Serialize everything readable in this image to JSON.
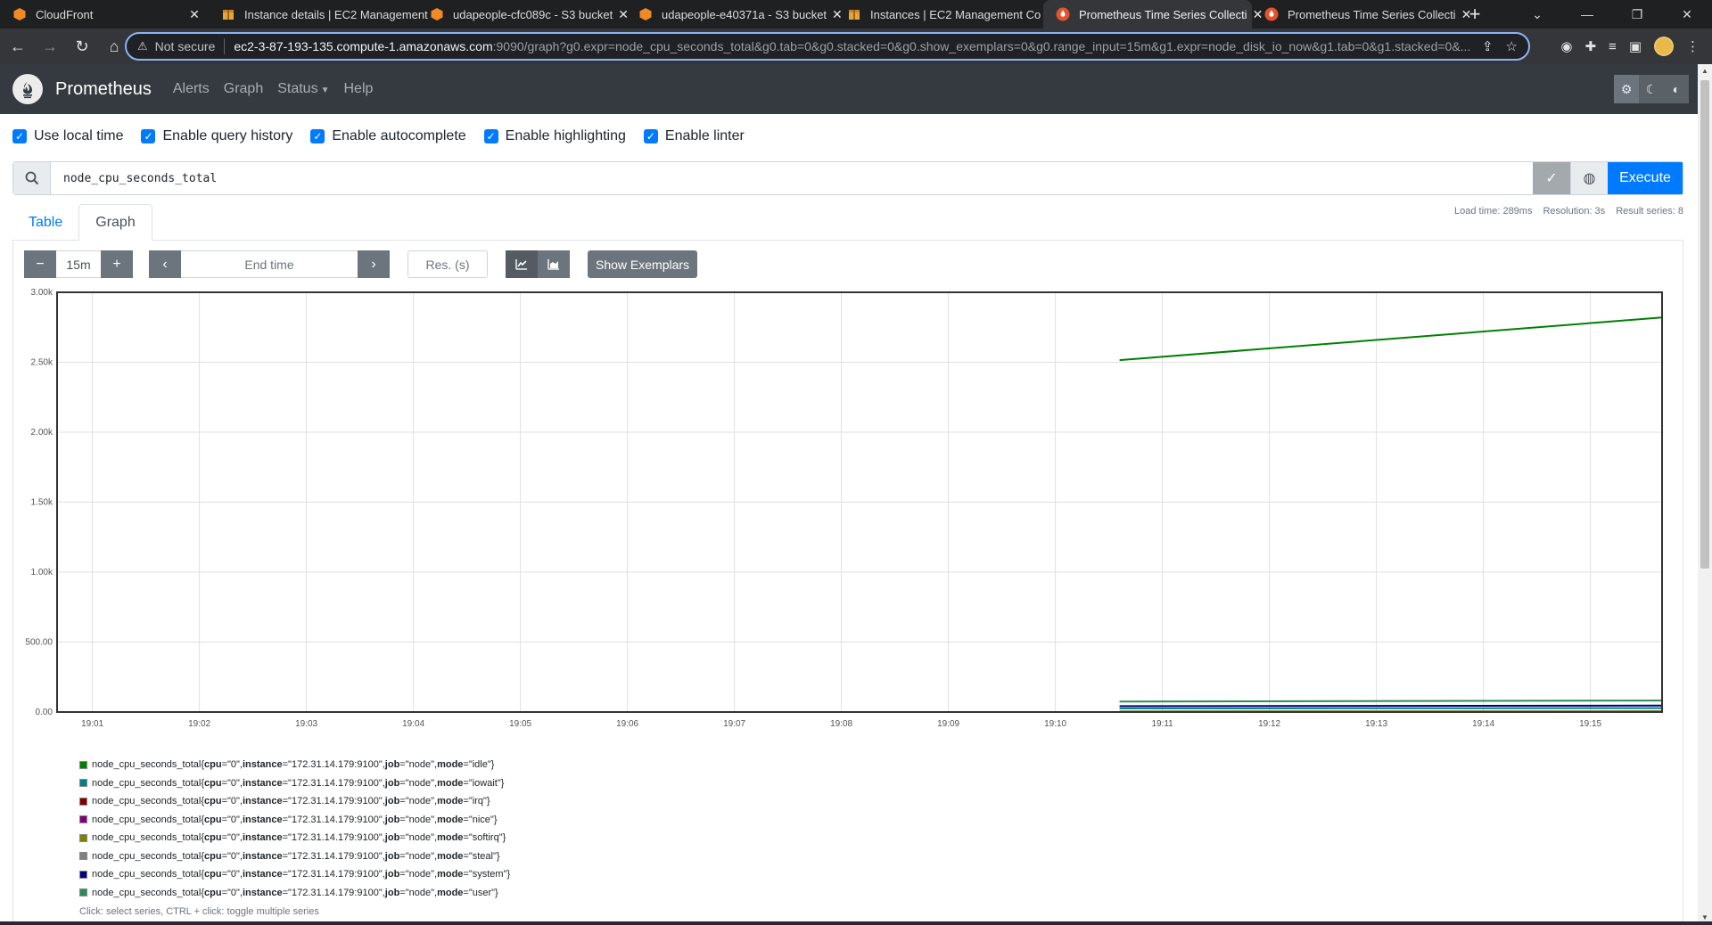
{
  "browser": {
    "tabs": [
      {
        "title": "CloudFront",
        "favicon": "aws-orange-icon",
        "active": false
      },
      {
        "title": "Instance details | EC2 Management",
        "favicon": "ec2-box-icon",
        "active": false
      },
      {
        "title": "udapeople-cfc089c - S3 bucket",
        "favicon": "aws-orange-icon",
        "active": false
      },
      {
        "title": "udapeople-e40371a - S3 bucket",
        "favicon": "aws-orange-icon",
        "active": false
      },
      {
        "title": "Instances | EC2 Management Co",
        "favicon": "ec2-box-icon",
        "active": false
      },
      {
        "title": "Prometheus Time Series Collecti",
        "favicon": "prometheus-icon",
        "active": true
      },
      {
        "title": "Prometheus Time Series Collecti",
        "favicon": "prometheus-icon",
        "active": false
      }
    ],
    "address": {
      "security_label": "Not secure",
      "host": "ec2-3-87-193-135.compute-1.amazonaws.com",
      "path": ":9090/graph?g0.expr=node_cpu_seconds_total&g0.tab=0&g0.stacked=0&g0.show_exemplars=0&g0.range_input=15m&g1.expr=node_disk_io_now&g1.tab=0&g1.stacked=0&..."
    }
  },
  "nav": {
    "brand": "Prometheus",
    "links": [
      "Alerts",
      "Graph",
      "Status",
      "Help"
    ]
  },
  "options": [
    {
      "label": "Use local time",
      "checked": true
    },
    {
      "label": "Enable query history",
      "checked": true
    },
    {
      "label": "Enable autocomplete",
      "checked": true
    },
    {
      "label": "Enable highlighting",
      "checked": true
    },
    {
      "label": "Enable linter",
      "checked": true
    }
  ],
  "query": {
    "expression": "node_cpu_seconds_total",
    "execute_label": "Execute"
  },
  "stats": {
    "load_time": "Load time: 289ms",
    "resolution": "Resolution: 3s",
    "result_series": "Result series: 8"
  },
  "panel_tabs": {
    "table": "Table",
    "graph": "Graph",
    "active": "graph"
  },
  "controls": {
    "range": "15m",
    "end_time_placeholder": "End time",
    "resolution_placeholder": "Res. (s)",
    "exemplars_label": "Show Exemplars"
  },
  "legend": {
    "metric": "node_cpu_seconds_total",
    "items": [
      {
        "cpu": "0",
        "instance": "172.31.14.179:9100",
        "job": "node",
        "mode": "idle",
        "color": "#008000"
      },
      {
        "cpu": "0",
        "instance": "172.31.14.179:9100",
        "job": "node",
        "mode": "iowait",
        "color": "#008080"
      },
      {
        "cpu": "0",
        "instance": "172.31.14.179:9100",
        "job": "node",
        "mode": "irq",
        "color": "#800000"
      },
      {
        "cpu": "0",
        "instance": "172.31.14.179:9100",
        "job": "node",
        "mode": "nice",
        "color": "#800080"
      },
      {
        "cpu": "0",
        "instance": "172.31.14.179:9100",
        "job": "node",
        "mode": "softirq",
        "color": "#808000"
      },
      {
        "cpu": "0",
        "instance": "172.31.14.179:9100",
        "job": "node",
        "mode": "steal",
        "color": "#808080"
      },
      {
        "cpu": "0",
        "instance": "172.31.14.179:9100",
        "job": "node",
        "mode": "system",
        "color": "#000080"
      },
      {
        "cpu": "0",
        "instance": "172.31.14.179:9100",
        "job": "node",
        "mode": "user",
        "color": "#2e8b57"
      }
    ],
    "hint": "Click: select series, CTRL + click: toggle multiple series"
  },
  "chart_data": {
    "type": "line",
    "y_ticks": [
      "0.00",
      "500.00",
      "1.00k",
      "1.50k",
      "2.00k",
      "2.50k",
      "3.00k"
    ],
    "ylim": [
      0,
      3000
    ],
    "x_ticks": [
      "19:01",
      "19:02",
      "19:03",
      "19:04",
      "19:05",
      "19:06",
      "19:07",
      "19:08",
      "19:09",
      "19:10",
      "19:11",
      "19:12",
      "19:13",
      "19:14",
      "19:15"
    ],
    "x_range_minutes": [
      0.67,
      15.67
    ],
    "grid": true,
    "series": [
      {
        "name": "idle",
        "color": "#008000",
        "start_min": 10.6,
        "end_min": 15.67,
        "y_start": 2515,
        "y_end": 2820
      },
      {
        "name": "user",
        "color": "#2e8b57",
        "start_min": 10.6,
        "end_min": 15.67,
        "y_start": 75,
        "y_end": 82
      },
      {
        "name": "system",
        "color": "#000080",
        "start_min": 10.6,
        "end_min": 15.67,
        "y_start": 42,
        "y_end": 46
      },
      {
        "name": "iowait",
        "color": "#008080",
        "start_min": 10.6,
        "end_min": 15.67,
        "y_start": 26,
        "y_end": 28
      },
      {
        "name": "softirq",
        "color": "#808000",
        "start_min": 10.6,
        "end_min": 15.67,
        "y_start": 5,
        "y_end": 6
      },
      {
        "name": "steal",
        "color": "#808080",
        "start_min": 10.6,
        "end_min": 15.67,
        "y_start": 3,
        "y_end": 3
      },
      {
        "name": "irq",
        "color": "#800000",
        "start_min": 10.6,
        "end_min": 15.67,
        "y_start": 0,
        "y_end": 0
      },
      {
        "name": "nice",
        "color": "#800080",
        "start_min": 10.6,
        "end_min": 15.67,
        "y_start": 0,
        "y_end": 0
      }
    ]
  }
}
